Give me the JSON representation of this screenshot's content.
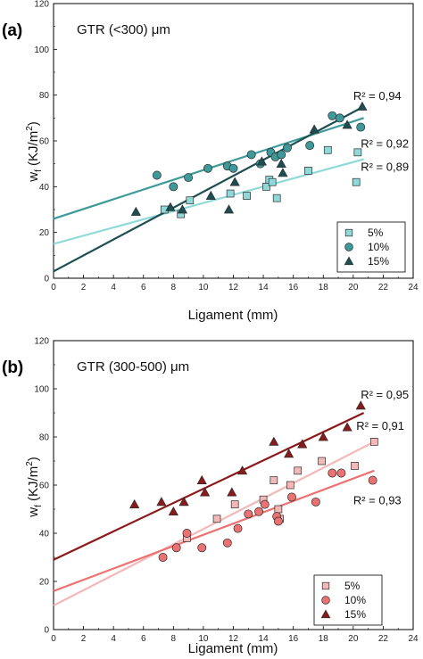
{
  "chart_data": [
    {
      "type": "scatter",
      "panel_label": "(a)",
      "title": "GTR (<300) μm",
      "xlabel": "Ligament (mm)",
      "ylabel": "wf (KJ/m2)",
      "ylabel_main": "w",
      "ylabel_sub": "f",
      "ylabel_unit": " (KJ/m",
      "ylabel_sup": "2",
      "ylabel_close": ")",
      "xlim": [
        0,
        24
      ],
      "ylim": [
        0,
        120
      ],
      "xticks": [
        0,
        2,
        4,
        6,
        8,
        10,
        12,
        14,
        16,
        18,
        20,
        22,
        24
      ],
      "yticks": [
        0,
        20,
        40,
        60,
        80,
        100,
        120
      ],
      "grid": false,
      "legend_position": "bottom-right",
      "series": [
        {
          "name": "5%",
          "marker": "square",
          "color": "#8fd9d9",
          "points": [
            [
              7.4,
              30
            ],
            [
              8.5,
              28
            ],
            [
              9.1,
              34
            ],
            [
              11.8,
              37
            ],
            [
              12.9,
              36
            ],
            [
              14.2,
              40
            ],
            [
              14.4,
              43
            ],
            [
              14.6,
              42
            ],
            [
              14.9,
              35
            ],
            [
              17.0,
              47
            ],
            [
              18.3,
              56
            ],
            [
              20.2,
              42
            ],
            [
              20.3,
              55
            ]
          ],
          "fit": [
            [
              0,
              15
            ],
            [
              20.7,
              52
            ]
          ],
          "r2_label": "R² = 0,89",
          "r2_at": [
            20.5,
            47
          ]
        },
        {
          "name": "10%",
          "marker": "circle",
          "color": "#3e9a9a",
          "points": [
            [
              6.9,
              45
            ],
            [
              8.0,
              40
            ],
            [
              9.0,
              44
            ],
            [
              10.3,
              48
            ],
            [
              11.6,
              49
            ],
            [
              12.0,
              48
            ],
            [
              13.2,
              54
            ],
            [
              13.8,
              50
            ],
            [
              14.5,
              55
            ],
            [
              14.8,
              53
            ],
            [
              15.2,
              54
            ],
            [
              15.6,
              57
            ],
            [
              17.1,
              58
            ],
            [
              18.6,
              71
            ],
            [
              19.1,
              70
            ],
            [
              20.5,
              66
            ]
          ],
          "fit": [
            [
              0,
              26
            ],
            [
              20.7,
              70
            ]
          ],
          "r2_label": "R² = 0,92",
          "r2_at": [
            20.5,
            57
          ]
        },
        {
          "name": "15%",
          "marker": "triangle",
          "color": "#1d4f52",
          "points": [
            [
              5.5,
              29
            ],
            [
              7.8,
              31
            ],
            [
              8.6,
              30
            ],
            [
              10.5,
              36
            ],
            [
              11.7,
              30
            ],
            [
              12.1,
              42
            ],
            [
              13.9,
              51
            ],
            [
              15.2,
              50
            ],
            [
              15.3,
              46
            ],
            [
              17.4,
              65
            ],
            [
              19.6,
              67
            ],
            [
              20.6,
              75
            ]
          ],
          "fit": [
            [
              0,
              3
            ],
            [
              20.7,
              75
            ]
          ],
          "r2_label": "R² = 0,94",
          "r2_at": [
            20.0,
            78
          ]
        }
      ]
    },
    {
      "type": "scatter",
      "panel_label": "(b)",
      "title": "GTR (300-500) μm",
      "xlabel": "Ligament (mm)",
      "ylabel": "wf (KJ/m2)",
      "ylabel_main": "w",
      "ylabel_sub": "f",
      "ylabel_unit": " (KJ/m",
      "ylabel_sup": "2",
      "ylabel_close": ")",
      "xlim": [
        0,
        24
      ],
      "ylim": [
        0,
        120
      ],
      "xticks": [
        0,
        2,
        4,
        6,
        8,
        10,
        12,
        14,
        16,
        18,
        20,
        22,
        24
      ],
      "yticks": [
        0,
        20,
        40,
        60,
        80,
        100,
        120
      ],
      "grid": false,
      "legend_position": "bottom-right",
      "series": [
        {
          "name": "5%",
          "marker": "square",
          "color": "#f3b8b8",
          "points": [
            [
              8.9,
              38
            ],
            [
              10.9,
              46
            ],
            [
              12.1,
              52
            ],
            [
              14.0,
              54
            ],
            [
              14.7,
              62
            ],
            [
              15.0,
              50
            ],
            [
              15.1,
              46
            ],
            [
              15.8,
              60
            ],
            [
              16.3,
              66
            ],
            [
              17.9,
              70
            ],
            [
              20.1,
              68
            ],
            [
              21.4,
              78
            ]
          ],
          "fit": [
            [
              0,
              10
            ],
            [
              21.4,
              78
            ]
          ],
          "r2_label": "R² = 0,91",
          "r2_at": [
            20.2,
            83
          ]
        },
        {
          "name": "10%",
          "marker": "circle",
          "color": "#ec7272",
          "points": [
            [
              7.3,
              30
            ],
            [
              8.2,
              34
            ],
            [
              8.9,
              40
            ],
            [
              9.9,
              34
            ],
            [
              11.6,
              36
            ],
            [
              12.3,
              42
            ],
            [
              13.0,
              48
            ],
            [
              13.7,
              49
            ],
            [
              14.1,
              52
            ],
            [
              14.9,
              47
            ],
            [
              15.0,
              45
            ],
            [
              15.9,
              55
            ],
            [
              17.5,
              53
            ],
            [
              18.6,
              65
            ],
            [
              19.2,
              65
            ],
            [
              21.3,
              62
            ]
          ],
          "fit": [
            [
              0,
              16
            ],
            [
              21.4,
              66
            ]
          ],
          "r2_label": "R² = 0,93",
          "r2_at": [
            20.0,
            52
          ]
        },
        {
          "name": "15%",
          "marker": "triangle",
          "color": "#8b1a1a",
          "points": [
            [
              5.4,
              52
            ],
            [
              7.2,
              53
            ],
            [
              8.0,
              49
            ],
            [
              8.7,
              53
            ],
            [
              9.9,
              62
            ],
            [
              10.1,
              57
            ],
            [
              11.9,
              57
            ],
            [
              12.6,
              66
            ],
            [
              14.7,
              78
            ],
            [
              15.7,
              73
            ],
            [
              16.6,
              77
            ],
            [
              18.0,
              80
            ],
            [
              19.6,
              84
            ],
            [
              20.5,
              93
            ]
          ],
          "fit": [
            [
              0,
              29
            ],
            [
              20.7,
              90
            ]
          ],
          "r2_label": "R² = 0,95",
          "r2_at": [
            20.5,
            96
          ]
        }
      ]
    }
  ]
}
